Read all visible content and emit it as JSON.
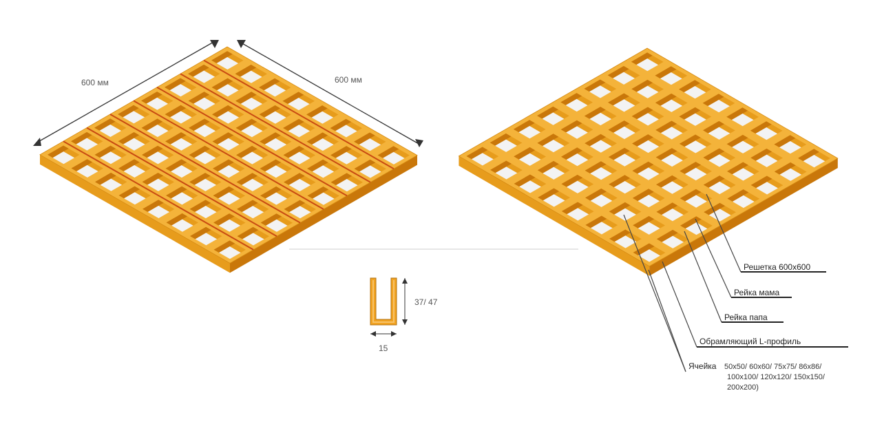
{
  "left_grid": {
    "dim_left": "600 мм",
    "dim_right": "600 мм"
  },
  "profile": {
    "height_label": "37/ 47",
    "width_label": "15"
  },
  "right_grid": {
    "callouts": [
      "Решетка 600х600",
      "Рейка мама",
      "Рейка папа",
      "Обрамляющий L-профиль",
      "Ячейка"
    ],
    "cell_sizes": [
      "50х50/ 60х60/ 75х75/ 86х86/",
      "100х100/ 120х120/ 150х150/",
      "200х200)"
    ]
  },
  "colors": {
    "top": "#f4b33a",
    "left_face": "#e79c1c",
    "right_face": "#c9770a",
    "hole": "#f3f3f3",
    "red_line": "#c84a12"
  }
}
